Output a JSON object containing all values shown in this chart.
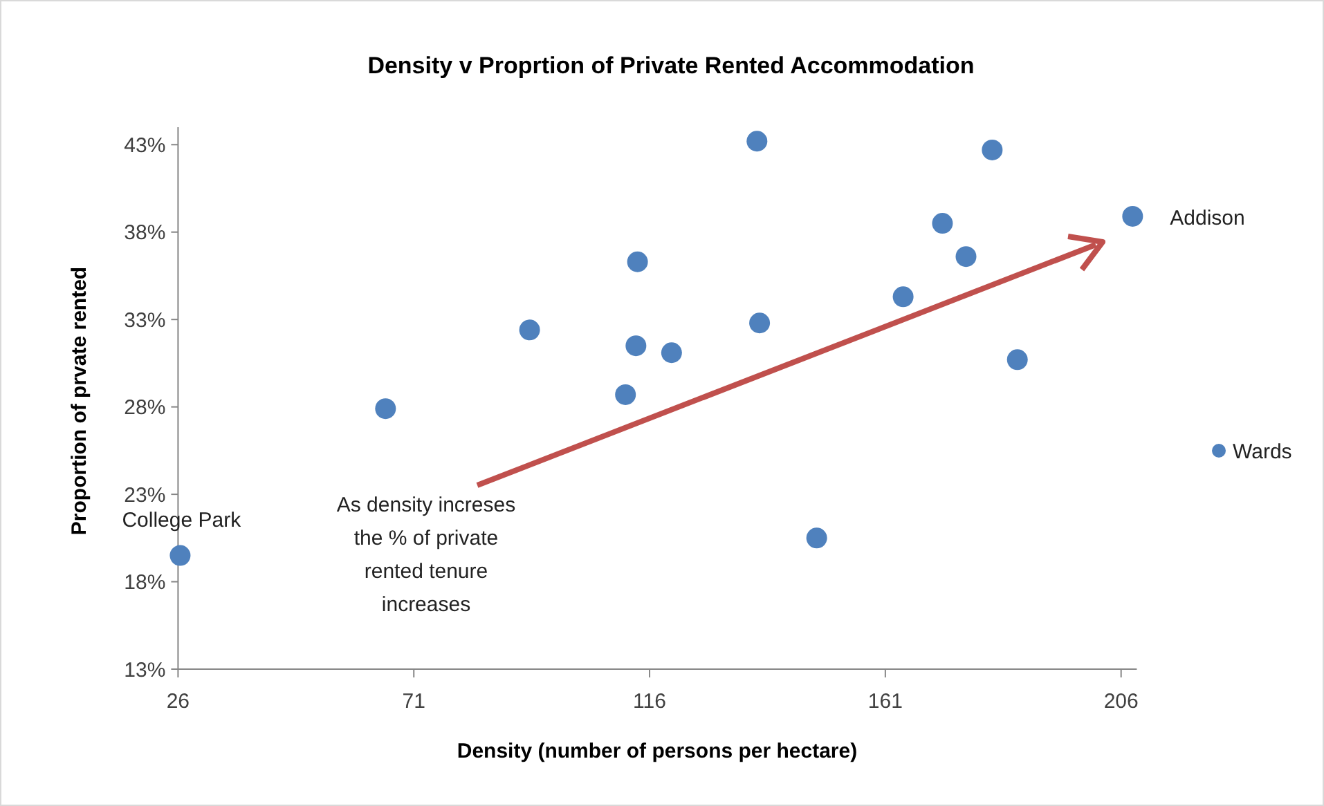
{
  "chart_data": {
    "type": "scatter",
    "title": "Density v Proprtion  of Private Rented Accommodation",
    "xlabel": "Density (number of persons per hectare)",
    "ylabel": "Proportion of prvate rented",
    "x": [
      26.4,
      65.6,
      93.1,
      111.4,
      113.4,
      113.7,
      120.2,
      136.5,
      137.0,
      147.9,
      164.4,
      171.9,
      176.4,
      181.4,
      186.2,
      208.2
    ],
    "series": [
      {
        "name": "Wards",
        "color": "#4f81bd",
        "values": [
          19.5,
          27.9,
          32.4,
          28.7,
          31.5,
          36.3,
          31.1,
          43.2,
          32.8,
          20.5,
          34.3,
          38.5,
          36.6,
          42.7,
          30.7,
          38.9
        ]
      }
    ],
    "xlim": [
      26,
      209
    ],
    "xticks": [
      26,
      71,
      116,
      161,
      206
    ],
    "ylim": [
      13,
      44
    ],
    "yticks": [
      {
        "value": 13,
        "label": "13%"
      },
      {
        "value": 18,
        "label": "18%"
      },
      {
        "value": 23,
        "label": "23%"
      },
      {
        "value": 28,
        "label": "28%"
      },
      {
        "value": 33,
        "label": "33%"
      },
      {
        "value": 38,
        "label": "38%"
      },
      {
        "value": 43,
        "label": "43%"
      }
    ],
    "annotations": [
      {
        "text": "College Park",
        "x": 26.4,
        "y": 19.5
      },
      {
        "text": "Addison",
        "x": 208.2,
        "y": 38.9
      },
      "As density increses\nthe % of private\nrented tenure\nincreases"
    ],
    "marker": "circle",
    "grid": false,
    "legend": "right"
  }
}
